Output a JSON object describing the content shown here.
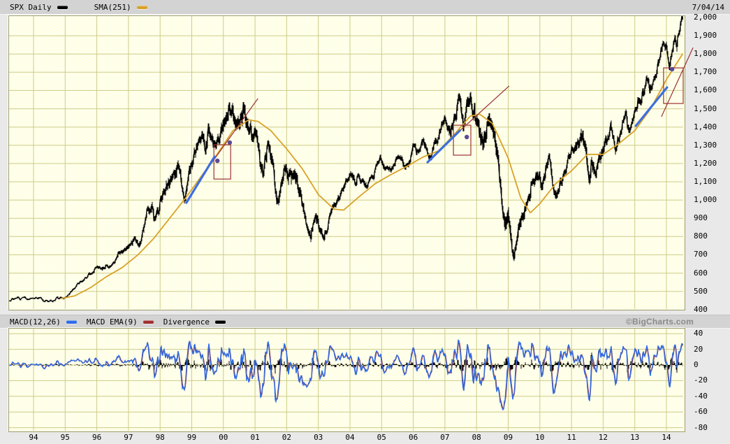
{
  "header": {
    "symbol_label": "SPX Daily",
    "sma_label": "SMA(251)",
    "date": "7/04/14"
  },
  "macd_header": {
    "macd_label": "MACD(12,26)",
    "ema_label": "MACD EMA(9)",
    "divergence_label": "Divergence",
    "watermark": "©BigCharts.com"
  },
  "colors": {
    "price": "#000000",
    "sma": "#D8A228",
    "macd": "#2E6CE6",
    "macd_ema": "#A03030",
    "divergence": "#000000",
    "blue_trend": "#3E6FE0",
    "red_annotation": "#993333",
    "dot": "#5A4A96",
    "grid": "#CCCC88",
    "plot_bg": "#FFFFE4",
    "bar_bg": "#D3D3D3",
    "page_bg": "#E9E9E9",
    "watermark": "#8A8A8A"
  },
  "chart_data": [
    {
      "type": "line",
      "title": "SPX Daily with SMA(251)",
      "x_axis": {
        "labels": [
          "94",
          "95",
          "96",
          "97",
          "98",
          "99",
          "00",
          "01",
          "02",
          "03",
          "04",
          "05",
          "06",
          "07",
          "08",
          "09",
          "10",
          "11",
          "12",
          "13",
          "14"
        ],
        "start_year": 1994
      },
      "y_axis": {
        "ticks": [
          {
            "value": 2000,
            "label": "2,000"
          },
          {
            "value": 1900,
            "label": "1,900"
          },
          {
            "value": 1800,
            "label": "1,800"
          },
          {
            "value": 1700,
            "label": "1,700"
          },
          {
            "value": 1600,
            "label": "1,600"
          },
          {
            "value": 1500,
            "label": "1,500"
          },
          {
            "value": 1400,
            "label": "1,400"
          },
          {
            "value": 1300,
            "label": "1,300"
          },
          {
            "value": 1200,
            "label": "1,200"
          },
          {
            "value": 1100,
            "label": "1,100"
          },
          {
            "value": 1000,
            "label": "1,000"
          },
          {
            "value": 900,
            "label": "900"
          },
          {
            "value": 800,
            "label": "800"
          },
          {
            "value": 700,
            "label": "700"
          },
          {
            "value": 600,
            "label": "600"
          },
          {
            "value": 500,
            "label": "500"
          },
          {
            "value": 400,
            "label": "400"
          }
        ],
        "range": [
          400,
          2000
        ]
      },
      "series": [
        {
          "name": "SPX Daily",
          "color_key": "price",
          "anchors": [
            [
              1993.21,
              450
            ],
            [
              1993.7,
              460
            ],
            [
              1994.1,
              470
            ],
            [
              1994.35,
              445
            ],
            [
              1994.7,
              455
            ],
            [
              1995.0,
              465
            ],
            [
              1995.5,
              545
            ],
            [
              1996.0,
              620
            ],
            [
              1996.4,
              645
            ],
            [
              1996.55,
              668
            ],
            [
              1997.0,
              750
            ],
            [
              1997.2,
              790
            ],
            [
              1997.35,
              762
            ],
            [
              1997.6,
              930
            ],
            [
              1997.75,
              960
            ],
            [
              1997.83,
              890
            ],
            [
              1998.0,
              975
            ],
            [
              1998.3,
              1110
            ],
            [
              1998.55,
              1180
            ],
            [
              1998.65,
              1120
            ],
            [
              1998.77,
              965
            ],
            [
              1998.95,
              1190
            ],
            [
              1999.2,
              1280
            ],
            [
              1999.35,
              1330
            ],
            [
              1999.45,
              1290
            ],
            [
              1999.55,
              1400
            ],
            [
              1999.75,
              1260
            ],
            [
              2000.0,
              1430
            ],
            [
              2000.22,
              1530
            ],
            [
              2000.42,
              1380
            ],
            [
              2000.65,
              1490
            ],
            [
              2000.85,
              1390
            ],
            [
              2001.05,
              1340
            ],
            [
              2001.25,
              1150
            ],
            [
              2001.42,
              1280
            ],
            [
              2001.55,
              1200
            ],
            [
              2001.72,
              975
            ],
            [
              2001.95,
              1160
            ],
            [
              2002.1,
              1120
            ],
            [
              2002.25,
              1160
            ],
            [
              2002.55,
              950
            ],
            [
              2002.77,
              790
            ],
            [
              2002.88,
              920
            ],
            [
              2003.0,
              870
            ],
            [
              2003.2,
              800
            ],
            [
              2003.45,
              950
            ],
            [
              2003.7,
              1010
            ],
            [
              2004.0,
              1130
            ],
            [
              2004.3,
              1110
            ],
            [
              2004.6,
              1075
            ],
            [
              2004.95,
              1210
            ],
            [
              2005.3,
              1150
            ],
            [
              2005.55,
              1240
            ],
            [
              2005.8,
              1180
            ],
            [
              2006.0,
              1280
            ],
            [
              2006.35,
              1320
            ],
            [
              2006.5,
              1230
            ],
            [
              2007.0,
              1425
            ],
            [
              2007.2,
              1390
            ],
            [
              2007.45,
              1540
            ],
            [
              2007.6,
              1420
            ],
            [
              2007.78,
              1565
            ],
            [
              2007.95,
              1470
            ],
            [
              2008.2,
              1320
            ],
            [
              2008.4,
              1420
            ],
            [
              2008.68,
              1270
            ],
            [
              2008.73,
              1160
            ],
            [
              2008.8,
              970
            ],
            [
              2008.9,
              860
            ],
            [
              2009.0,
              930
            ],
            [
              2009.17,
              680
            ],
            [
              2009.35,
              870
            ],
            [
              2009.5,
              930
            ],
            [
              2009.75,
              1070
            ],
            [
              2010.0,
              1140
            ],
            [
              2010.05,
              1070
            ],
            [
              2010.3,
              1210
            ],
            [
              2010.5,
              1030
            ],
            [
              2010.65,
              1100
            ],
            [
              2010.75,
              1140
            ],
            [
              2011.0,
              1280
            ],
            [
              2011.15,
              1320
            ],
            [
              2011.35,
              1360
            ],
            [
              2011.45,
              1310
            ],
            [
              2011.57,
              1120
            ],
            [
              2011.65,
              1200
            ],
            [
              2011.75,
              1120
            ],
            [
              2011.95,
              1260
            ],
            [
              2012.25,
              1420
            ],
            [
              2012.4,
              1280
            ],
            [
              2012.7,
              1470
            ],
            [
              2012.85,
              1400
            ],
            [
              2013.0,
              1500
            ],
            [
              2013.2,
              1560
            ],
            [
              2013.4,
              1660
            ],
            [
              2013.47,
              1580
            ],
            [
              2013.7,
              1700
            ],
            [
              2013.85,
              1810
            ],
            [
              2014.0,
              1850
            ],
            [
              2014.1,
              1740
            ],
            [
              2014.25,
              1880
            ],
            [
              2014.33,
              1820
            ],
            [
              2014.42,
              1950
            ],
            [
              2014.51,
              1985
            ]
          ]
        },
        {
          "name": "SMA(251)",
          "color_key": "sma",
          "anchors": [
            [
              1994.85,
              460
            ],
            [
              1995.3,
              475
            ],
            [
              1995.8,
              520
            ],
            [
              1996.3,
              580
            ],
            [
              1996.8,
              630
            ],
            [
              1997.3,
              700
            ],
            [
              1997.8,
              790
            ],
            [
              1998.3,
              900
            ],
            [
              1998.8,
              1010
            ],
            [
              1999.3,
              1130
            ],
            [
              1999.8,
              1250
            ],
            [
              2000.3,
              1380
            ],
            [
              2000.8,
              1440
            ],
            [
              2001.1,
              1430
            ],
            [
              2001.5,
              1380
            ],
            [
              2002.0,
              1280
            ],
            [
              2002.5,
              1170
            ],
            [
              2003.0,
              1030
            ],
            [
              2003.5,
              950
            ],
            [
              2003.8,
              945
            ],
            [
              2004.3,
              1020
            ],
            [
              2004.8,
              1090
            ],
            [
              2005.3,
              1140
            ],
            [
              2005.8,
              1185
            ],
            [
              2006.3,
              1235
            ],
            [
              2006.8,
              1270
            ],
            [
              2007.3,
              1360
            ],
            [
              2007.8,
              1460
            ],
            [
              2008.1,
              1470
            ],
            [
              2008.5,
              1420
            ],
            [
              2009.0,
              1230
            ],
            [
              2009.4,
              1010
            ],
            [
              2009.7,
              930
            ],
            [
              2010.0,
              980
            ],
            [
              2010.5,
              1090
            ],
            [
              2011.0,
              1160
            ],
            [
              2011.5,
              1250
            ],
            [
              2012.0,
              1250
            ],
            [
              2012.5,
              1310
            ],
            [
              2013.0,
              1380
            ],
            [
              2013.5,
              1500
            ],
            [
              2014.0,
              1660
            ],
            [
              2014.51,
              1800
            ]
          ]
        }
      ],
      "volatility_anchors": [
        [
          1993.21,
          0.5
        ],
        [
          1995.0,
          0.5
        ],
        [
          1996.5,
          0.7
        ],
        [
          1997.5,
          1.2
        ],
        [
          1998.5,
          1.3
        ],
        [
          1999.5,
          1.2
        ],
        [
          2000.5,
          1.4
        ],
        [
          2001.5,
          1.4
        ],
        [
          2002.5,
          1.7
        ],
        [
          2003.3,
          1.1
        ],
        [
          2004.0,
          0.8
        ],
        [
          2005.0,
          0.65
        ],
        [
          2006.0,
          0.65
        ],
        [
          2007.0,
          0.8
        ],
        [
          2007.8,
          1.2
        ],
        [
          2008.7,
          2.0
        ],
        [
          2008.95,
          2.8
        ],
        [
          2009.3,
          2.0
        ],
        [
          2009.8,
          1.2
        ],
        [
          2010.4,
          1.2
        ],
        [
          2011.0,
          0.9
        ],
        [
          2011.6,
          1.7
        ],
        [
          2012.0,
          0.9
        ],
        [
          2013.0,
          0.7
        ],
        [
          2014.51,
          0.55
        ]
      ],
      "annotations": {
        "blue_trendlines": [
          [
            [
              1998.83,
              985
            ],
            [
              1999.72,
              1238
            ]
          ],
          [
            [
              2006.45,
              1207
            ],
            [
              2007.47,
              1380
            ]
          ],
          [
            [
              2013.03,
              1406
            ],
            [
              2014.02,
              1617
            ]
          ]
        ],
        "red_trendlines": [
          [
            [
              1999.47,
              1165
            ],
            [
              2001.09,
              1556
            ]
          ],
          [
            [
              2007.4,
              1368
            ],
            [
              2009.03,
              1625
            ]
          ],
          [
            [
              2013.84,
              1456
            ],
            [
              2014.84,
              1835
            ]
          ]
        ],
        "red_boxes": [
          {
            "t": [
              1999.7,
              2000.23
            ],
            "price": [
              1115,
              1303
            ]
          },
          {
            "t": [
              2007.27,
              2007.82
            ],
            "price": [
              1246,
              1410
            ]
          },
          {
            "t": [
              2013.91,
              2014.53
            ],
            "price": [
              1529,
              1724
            ]
          }
        ],
        "dots": [
          [
            1999.81,
            1215
          ],
          [
            2000.2,
            1315
          ],
          [
            2007.69,
            1345
          ],
          [
            2014.18,
            1717
          ]
        ]
      }
    },
    {
      "type": "line",
      "title": "MACD(12,26) with MACD EMA(9) and Divergence histogram",
      "params": {
        "fast": 12,
        "slow": 26,
        "signal": 9
      },
      "derived_from": "SPX Daily closes",
      "y_axis": {
        "ticks": [
          {
            "value": 40,
            "label": "40"
          },
          {
            "value": 20,
            "label": "20"
          },
          {
            "value": 0,
            "label": "0"
          },
          {
            "value": -20,
            "label": "-20"
          },
          {
            "value": -40,
            "label": "-40"
          },
          {
            "value": -60,
            "label": "-60"
          },
          {
            "value": -80,
            "label": "-80"
          }
        ],
        "range": [
          -80,
          40
        ]
      }
    }
  ]
}
